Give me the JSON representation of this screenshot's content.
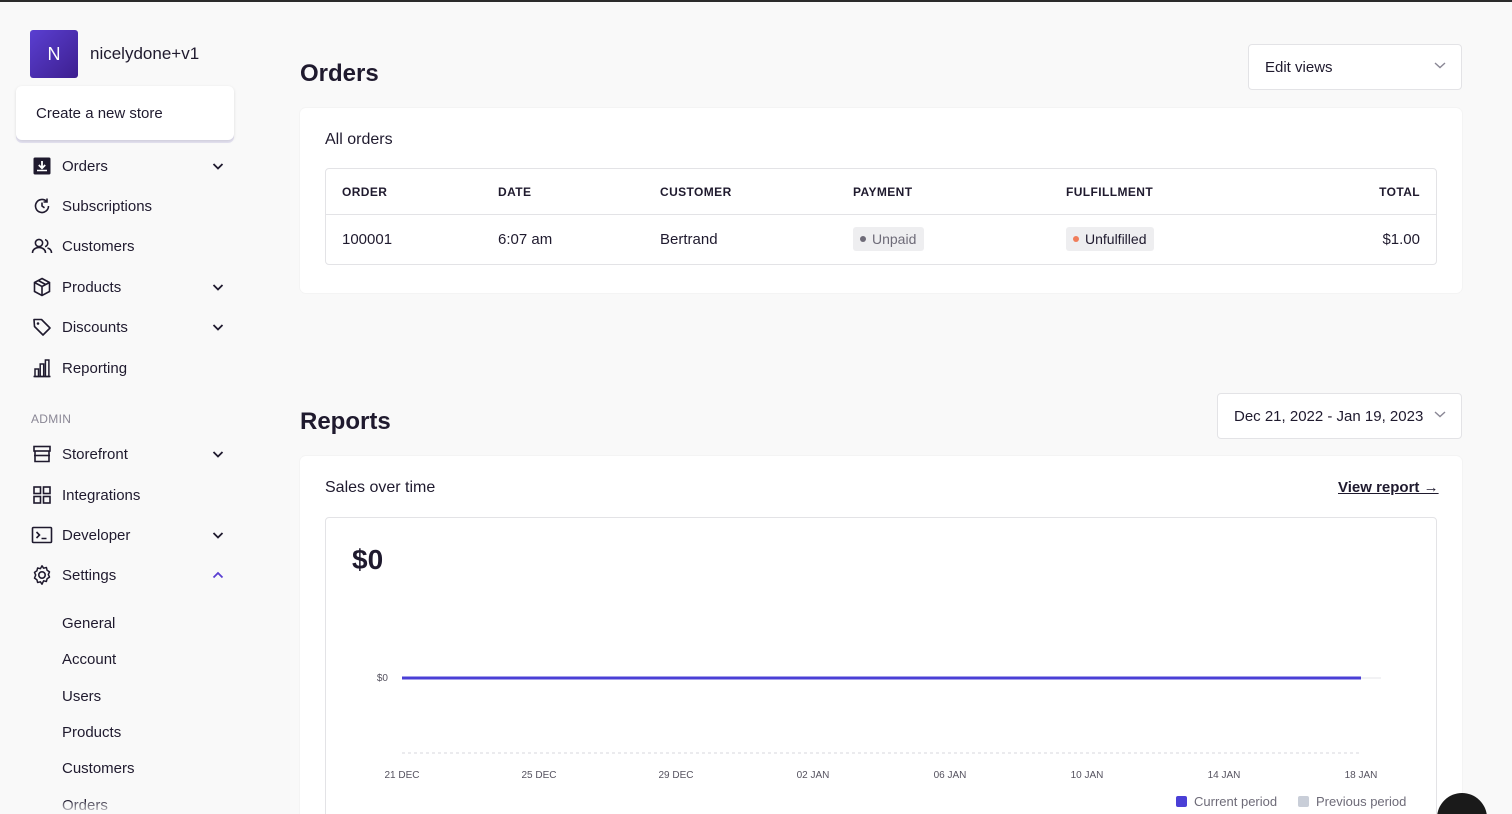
{
  "store": {
    "avatar_letter": "N",
    "name": "nicelydone+v1",
    "popover_item": "Create a new store"
  },
  "nav": {
    "orders": "Orders",
    "subscriptions": "Subscriptions",
    "customers": "Customers",
    "products": "Products",
    "discounts": "Discounts",
    "reporting": "Reporting",
    "admin_label": "ADMIN",
    "storefront": "Storefront",
    "integrations": "Integrations",
    "developer": "Developer",
    "settings": "Settings",
    "settings_sub": [
      "General",
      "Account",
      "Users",
      "Products",
      "Customers",
      "Orders"
    ]
  },
  "orders_section": {
    "title": "Orders",
    "edit_views": "Edit views",
    "card_title": "All orders",
    "columns": [
      "ORDER",
      "DATE",
      "CUSTOMER",
      "PAYMENT",
      "FULFILLMENT",
      "TOTAL"
    ],
    "rows": [
      {
        "order": "100001",
        "date": "6:07 am",
        "customer": "Bertrand",
        "payment": "Unpaid",
        "fulfillment": "Unfulfilled",
        "total": "$1.00"
      }
    ]
  },
  "reports_section": {
    "title": "Reports",
    "date_range": "Dec 21, 2022 - Jan 19, 2023",
    "card_title": "Sales over time",
    "view_report": "View report →",
    "total_value": "$0"
  },
  "chart_data": {
    "type": "line",
    "x": [
      "21 DEC",
      "22 DEC",
      "23 DEC",
      "24 DEC",
      "25 DEC",
      "26 DEC",
      "27 DEC",
      "28 DEC",
      "29 DEC",
      "30 DEC",
      "31 DEC",
      "01 JAN",
      "02 JAN",
      "03 JAN",
      "04 JAN",
      "05 JAN",
      "06 JAN",
      "07 JAN",
      "08 JAN",
      "09 JAN",
      "10 JAN",
      "11 JAN",
      "12 JAN",
      "13 JAN",
      "14 JAN",
      "15 JAN",
      "16 JAN",
      "17 JAN",
      "18 JAN"
    ],
    "x_ticks": [
      "21 DEC",
      "25 DEC",
      "29 DEC",
      "02 JAN",
      "06 JAN",
      "10 JAN",
      "14 JAN",
      "18 JAN"
    ],
    "y_ticks": [
      "$0"
    ],
    "series": [
      {
        "name": "Current period",
        "color": "#4a3fd6",
        "values": [
          0,
          0,
          0,
          0,
          0,
          0,
          0,
          0,
          0,
          0,
          0,
          0,
          0,
          0,
          0,
          0,
          0,
          0,
          0,
          0,
          0,
          0,
          0,
          0,
          0,
          0,
          0,
          0,
          0
        ]
      },
      {
        "name": "Previous period",
        "color": "#c9ced8",
        "values": [
          0,
          0,
          0,
          0,
          0,
          0,
          0,
          0,
          0,
          0,
          0,
          0,
          0,
          0,
          0,
          0,
          0,
          0,
          0,
          0,
          0,
          0,
          0,
          0,
          0,
          0,
          0,
          0,
          0
        ]
      }
    ],
    "legend": "bottom-right"
  },
  "colors": {
    "accent": "#4a3fd6",
    "unpaid_dot": "#6e6b78",
    "unfulfilled_dot": "#f07d5a"
  }
}
